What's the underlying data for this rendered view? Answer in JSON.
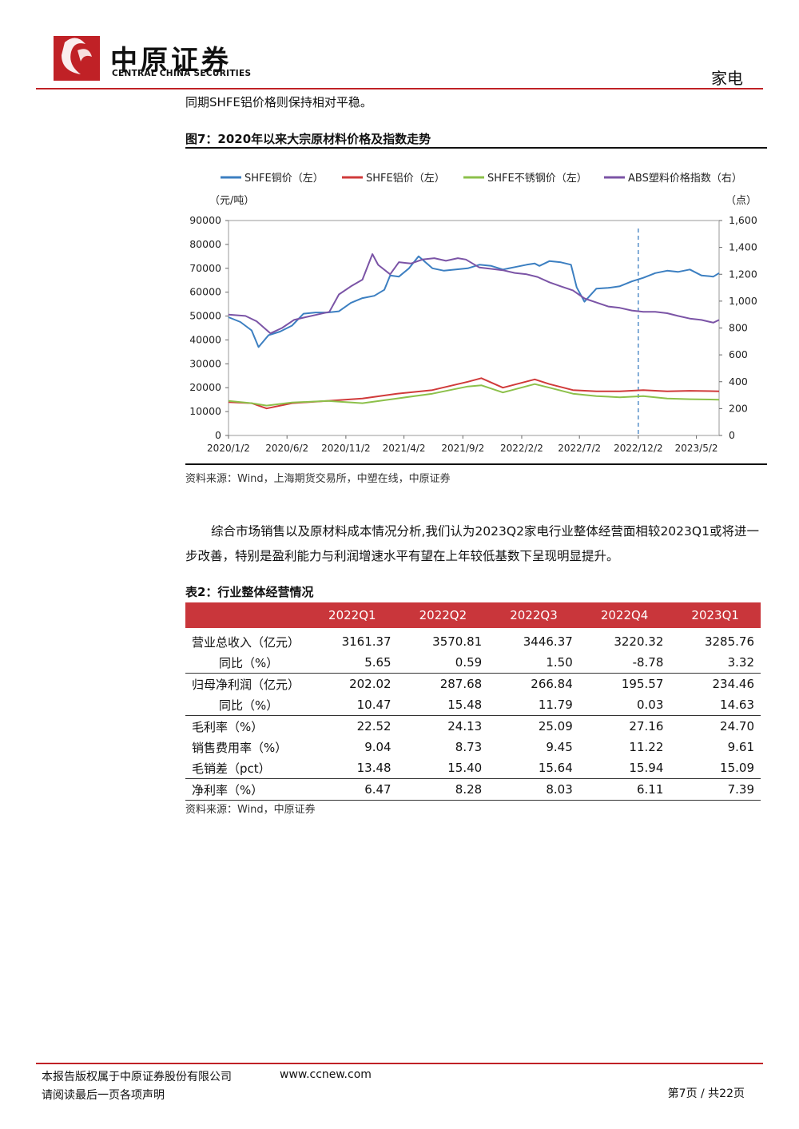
{
  "header": {
    "brand_cn": "中原证券",
    "brand_en": "CENTRAL CHINA SECURITIES",
    "sector": "家电"
  },
  "lead_text": "同期SHFE铝价格则保持相对平稳。",
  "figure": {
    "title": "图7：2020年以来大宗原材料价格及指数走势",
    "source": "资料来源：Wind，上海期货交易所，中塑在线，中原证券"
  },
  "chart_data": {
    "type": "line",
    "legend": [
      "SHFE铜价（左）",
      "SHFE铝价（左）",
      "SHFE不锈钢价（左）",
      "ABS塑料价格指数（右）"
    ],
    "left_unit": "（元/吨）",
    "right_unit": "（点）",
    "left_axis": {
      "ylim": [
        0,
        90000
      ],
      "ticks": [
        "0",
        "10000",
        "20000",
        "30000",
        "40000",
        "50000",
        "60000",
        "70000",
        "80000",
        "90000"
      ]
    },
    "right_axis": {
      "ylim": [
        0,
        1600
      ],
      "ticks": [
        "0",
        "200",
        "400",
        "600",
        "800",
        "1,000",
        "1,200",
        "1,400",
        "1,600"
      ]
    },
    "x_ticks": [
      "2020/1/2",
      "2020/6/2",
      "2020/11/2",
      "2021/4/2",
      "2021/9/2",
      "2022/2/2",
      "2022/7/2",
      "2022/12/2",
      "2023/5/2"
    ],
    "x_range": [
      "2020/1/2",
      "2023/6/30"
    ],
    "grid": false,
    "legend_position": "top",
    "reference_line": "2022/12/2",
    "colors": {
      "copper": "#3c7fc1",
      "aluminum": "#d03a3a",
      "steel": "#8cc04a",
      "abs": "#7b54a6",
      "refline": "#3c7fc1"
    },
    "series": [
      {
        "name": "SHFE铜价（左）",
        "axis": "left",
        "x": [
          "2020/1/2",
          "2020/2/2",
          "2020/3/2",
          "2020/3/20",
          "2020/4/15",
          "2020/5/15",
          "2020/6/15",
          "2020/7/15",
          "2020/8/15",
          "2020/9/15",
          "2020/10/15",
          "2020/11/15",
          "2020/12/15",
          "2021/1/15",
          "2021/2/10",
          "2021/2/25",
          "2021/3/20",
          "2021/4/15",
          "2021/5/10",
          "2021/6/15",
          "2021/7/15",
          "2021/8/15",
          "2021/9/15",
          "2021/10/15",
          "2021/11/15",
          "2021/12/15",
          "2022/1/15",
          "2022/2/15",
          "2022/3/8",
          "2022/3/20",
          "2022/4/15",
          "2022/5/15",
          "2022/6/10",
          "2022/6/25",
          "2022/7/15",
          "2022/8/15",
          "2022/9/15",
          "2022/10/15",
          "2022/11/15",
          "2022/12/15",
          "2023/1/15",
          "2023/2/15",
          "2023/3/15",
          "2023/4/15",
          "2023/5/15",
          "2023/6/15",
          "2023/6/30"
        ],
        "values": [
          49500,
          47500,
          44000,
          37000,
          42000,
          43500,
          46000,
          51000,
          51500,
          51500,
          52000,
          55500,
          57500,
          58500,
          61000,
          67000,
          66500,
          70000,
          75000,
          70000,
          69000,
          69500,
          70000,
          71500,
          71000,
          69500,
          70500,
          71500,
          72000,
          71000,
          73000,
          72500,
          71500,
          62000,
          56000,
          61500,
          61800,
          62500,
          64500,
          66000,
          68000,
          69000,
          68500,
          69500,
          67000,
          66500,
          68000
        ]
      },
      {
        "name": "SHFE铝价（左）",
        "axis": "left",
        "x": [
          "2020/1/2",
          "2020/3/2",
          "2020/4/10",
          "2020/6/15",
          "2020/9/15",
          "2020/12/15",
          "2021/3/15",
          "2021/6/15",
          "2021/9/15",
          "2021/10/20",
          "2021/12/15",
          "2022/3/8",
          "2022/4/15",
          "2022/6/15",
          "2022/8/15",
          "2022/10/15",
          "2022/12/15",
          "2023/2/15",
          "2023/4/15",
          "2023/6/30"
        ],
        "values": [
          14000,
          13500,
          11300,
          13500,
          14500,
          15500,
          17500,
          19000,
          22500,
          24000,
          20000,
          23500,
          21500,
          19000,
          18500,
          18500,
          19000,
          18500,
          18700,
          18500
        ]
      },
      {
        "name": "SHFE不锈钢价（左）",
        "axis": "left",
        "x": [
          "2020/1/2",
          "2020/3/2",
          "2020/4/10",
          "2020/6/15",
          "2020/9/15",
          "2020/12/15",
          "2021/3/15",
          "2021/6/15",
          "2021/9/15",
          "2021/10/20",
          "2021/12/15",
          "2022/3/8",
          "2022/4/15",
          "2022/6/15",
          "2022/8/15",
          "2022/10/15",
          "2022/12/15",
          "2023/2/15",
          "2023/4/15",
          "2023/6/30"
        ],
        "values": [
          14500,
          13500,
          12500,
          13800,
          14500,
          13500,
          15500,
          17500,
          20500,
          21000,
          18000,
          21500,
          20000,
          17500,
          16500,
          16000,
          16500,
          15500,
          15200,
          15000
        ]
      },
      {
        "name": "ABS塑料价格指数（右）",
        "axis": "right",
        "x": [
          "2020/1/2",
          "2020/2/15",
          "2020/3/15",
          "2020/4/20",
          "2020/5/20",
          "2020/6/20",
          "2020/7/20",
          "2020/8/20",
          "2020/9/20",
          "2020/10/15",
          "2020/11/15",
          "2020/12/15",
          "2021/1/10",
          "2021/1/25",
          "2021/2/25",
          "2021/3/20",
          "2021/4/20",
          "2021/5/20",
          "2021/6/20",
          "2021/7/20",
          "2021/8/20",
          "2021/9/10",
          "2021/10/15",
          "2021/11/15",
          "2021/12/15",
          "2022/1/15",
          "2022/2/15",
          "2022/3/15",
          "2022/4/15",
          "2022/5/15",
          "2022/6/15",
          "2022/7/15",
          "2022/8/15",
          "2022/9/15",
          "2022/10/15",
          "2022/11/15",
          "2022/12/15",
          "2023/1/15",
          "2023/2/15",
          "2023/3/15",
          "2023/4/15",
          "2023/5/15",
          "2023/6/15",
          "2023/6/30"
        ],
        "values": [
          900,
          890,
          850,
          760,
          800,
          860,
          880,
          900,
          920,
          1050,
          1110,
          1160,
          1350,
          1270,
          1200,
          1290,
          1280,
          1310,
          1320,
          1300,
          1320,
          1310,
          1250,
          1240,
          1230,
          1210,
          1200,
          1180,
          1140,
          1110,
          1080,
          1020,
          990,
          960,
          950,
          930,
          920,
          920,
          910,
          890,
          870,
          860,
          840,
          860
        ]
      }
    ]
  },
  "paragraph": "综合市场销售以及原材料成本情况分析,我们认为2023Q2家电行业整体经营面相较2023Q1或将进一步改善，特别是盈利能力与利润增速水平有望在上年较低基数下呈现明显提升。",
  "table": {
    "title": "表2：行业整体经营情况",
    "columns": [
      "",
      "2022Q1",
      "2022Q2",
      "2022Q3",
      "2022Q4",
      "2023Q1"
    ],
    "rows": [
      {
        "label": "营业总收入（亿元）",
        "values": [
          "3161.37",
          "3570.81",
          "3446.37",
          "3220.32",
          "3285.76"
        ]
      },
      {
        "label": "同比（%）",
        "values": [
          "5.65",
          "0.59",
          "1.50",
          "-8.78",
          "3.32"
        ]
      },
      {
        "label": "归母净利润（亿元）",
        "values": [
          "202.02",
          "287.68",
          "266.84",
          "195.57",
          "234.46"
        ]
      },
      {
        "label": "同比（%）",
        "values": [
          "10.47",
          "15.48",
          "11.79",
          "0.03",
          "14.63"
        ]
      },
      {
        "label": "毛利率（%）",
        "values": [
          "22.52",
          "24.13",
          "25.09",
          "27.16",
          "24.70"
        ]
      },
      {
        "label": "销售费用率（%）",
        "values": [
          "9.04",
          "8.73",
          "9.45",
          "11.22",
          "9.61"
        ]
      },
      {
        "label": "毛销差（pct）",
        "values": [
          "13.48",
          "15.40",
          "15.64",
          "15.94",
          "15.09"
        ]
      },
      {
        "label": "净利率（%）",
        "values": [
          "6.47",
          "8.28",
          "8.03",
          "6.11",
          "7.39"
        ]
      }
    ],
    "source": "资料来源：Wind，中原证券"
  },
  "footer": {
    "copyright": "本报告版权属于中原证券股份有限公司",
    "url": "www.ccnew.com",
    "notice": "请阅读最后一页各项声明",
    "page": "第7页 / 共22页"
  }
}
